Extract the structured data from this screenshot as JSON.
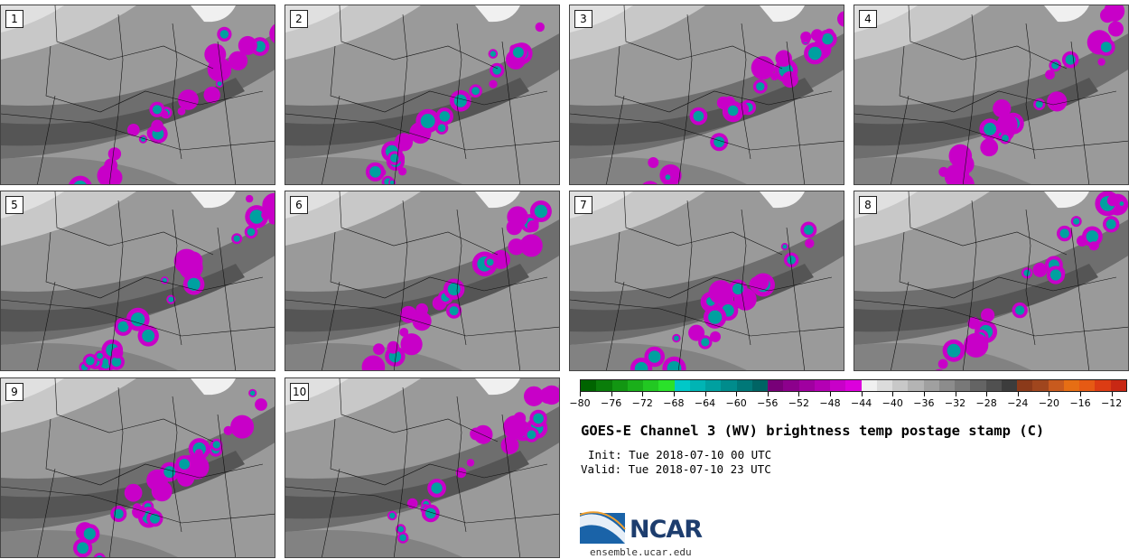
{
  "panels": [
    "1",
    "2",
    "3",
    "4",
    "5",
    "6",
    "7",
    "8",
    "9",
    "10"
  ],
  "colorbar": {
    "colors": [
      "#006400",
      "#0a7d0a",
      "#129612",
      "#1aaf1a",
      "#22c822",
      "#2ae12a",
      "#00c8c8",
      "#00b4b4",
      "#00a0a0",
      "#008c8c",
      "#007878",
      "#006464",
      "#780078",
      "#8c008c",
      "#a000a0",
      "#b400b4",
      "#c800c8",
      "#dc00dc",
      "#f0f0f0",
      "#dcdcdc",
      "#c8c8c8",
      "#b4b4b4",
      "#a0a0a0",
      "#8c8c8c",
      "#787878",
      "#646464",
      "#505050",
      "#3c3c3c",
      "#8b3a1a",
      "#a0461e",
      "#c85a1e",
      "#e66e14",
      "#e65a14",
      "#dc3c14",
      "#c82814"
    ],
    "min": -80,
    "max": -10,
    "tick_labels": [
      "−80",
      "−76",
      "−72",
      "−68",
      "−64",
      "−60",
      "−56",
      "−52",
      "−48",
      "−44",
      "−40",
      "−36",
      "−32",
      "−28",
      "−24",
      "−20",
      "−16",
      "−12"
    ],
    "tick_values": [
      -80,
      -76,
      -72,
      -68,
      -64,
      -60,
      -56,
      -52,
      -48,
      -44,
      -40,
      -36,
      -32,
      -28,
      -24,
      -20,
      -16,
      -12
    ]
  },
  "title": "GOES-E Channel 3 (WV) brightness temp postage stamp (C)",
  "init": "Init: Tue 2018-07-10 00 UTC",
  "valid": "Valid: Tue 2018-07-10 23 UTC",
  "logo_text": "NCAR",
  "site": "ensemble.ucar.edu"
}
